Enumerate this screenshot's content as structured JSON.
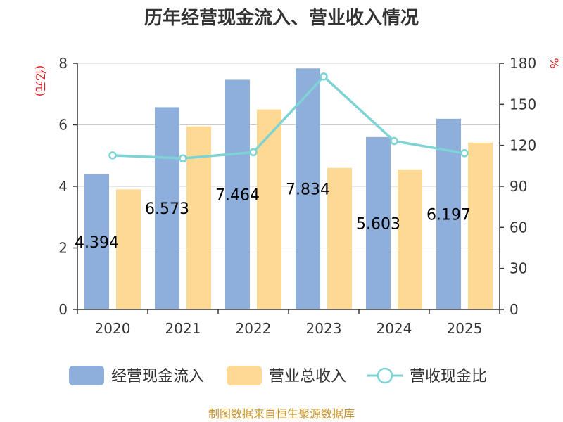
{
  "chart_data": {
    "type": "bar",
    "title": "历年经营现金流入、营业收入情况",
    "categories": [
      "2020",
      "2021",
      "2022",
      "2023",
      "2024",
      "2025"
    ],
    "series": [
      {
        "name": "经营现金流入",
        "kind": "bar",
        "axis": "left",
        "color": "#8eaedb",
        "values": [
          4.394,
          6.573,
          7.464,
          7.834,
          5.603,
          6.197
        ]
      },
      {
        "name": "营业总收入",
        "kind": "bar",
        "axis": "left",
        "color": "#fed994",
        "values": [
          3.9,
          5.95,
          6.5,
          4.6,
          4.55,
          5.42
        ]
      },
      {
        "name": "营收现金比",
        "kind": "line",
        "axis": "right",
        "color": "#7fd3d4",
        "values": [
          112.7,
          110.5,
          115.0,
          170.3,
          123.2,
          114.3
        ]
      }
    ],
    "data_labels": [
      "4.394",
      "6.573",
      "7.464",
      "7.834",
      "5.603",
      "6.197"
    ],
    "left_axis": {
      "unit": "(亿元)",
      "ylim": [
        0,
        8
      ],
      "ticks": [
        "0",
        "2",
        "4",
        "6",
        "8"
      ]
    },
    "right_axis": {
      "unit": "%",
      "ylim": [
        0,
        180
      ],
      "ticks": [
        "0",
        "30",
        "60",
        "90",
        "120",
        "150",
        "180"
      ]
    },
    "grid": true,
    "legend": "bottom",
    "source": "制图数据来自恒生聚源数据库"
  }
}
